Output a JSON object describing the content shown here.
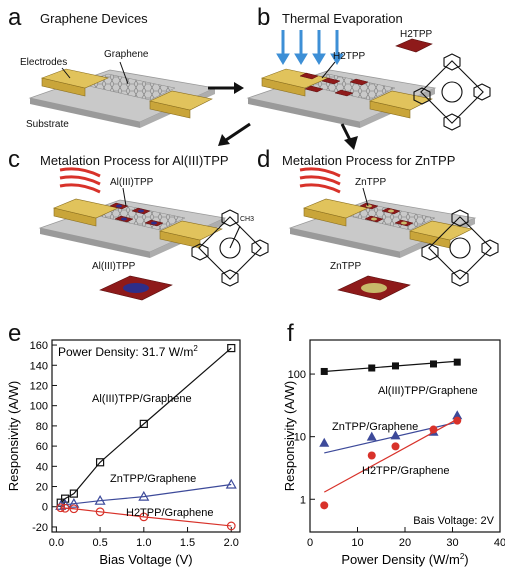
{
  "panels": {
    "a": {
      "letter": "a",
      "title": "Graphene Devices",
      "labels": {
        "graphene": "Graphene",
        "electrodes": "Electrodes",
        "substrate": "Substrate"
      }
    },
    "b": {
      "letter": "b",
      "title": "Thermal Evaporation",
      "labels": {
        "h2tpp_top": "H2TPP",
        "h2tpp_mol": "H2TPP"
      }
    },
    "c": {
      "letter": "c",
      "title": "Metalation Process for Al(III)TPP",
      "labels": {
        "altpp_top": "Al(III)TPP",
        "altpp_mol": "Al(III)TPP",
        "ch3": "CH3"
      }
    },
    "d": {
      "letter": "d",
      "title": "Metalation Process for ZnTPP",
      "labels": {
        "zntpp_top": "ZnTPP",
        "zntpp_mol": "ZnTPP"
      }
    },
    "e": {
      "letter": "e"
    },
    "f": {
      "letter": "f"
    }
  },
  "colors": {
    "electrode": "#c9a53a",
    "substrate": "#bdbdbd",
    "porphyrin_film": "#8e1a1a",
    "arrow_blue": "#3d8fd6",
    "heat_red": "#d8322a",
    "al": "#2e2e8a",
    "zn": "#c7b96a"
  },
  "chart_data": [
    {
      "type": "line",
      "annotation": "Power Density: 31.7 W/m",
      "annotation_sup": "2",
      "xlabel": "Bias Voltage (V)",
      "ylabel": "Responsivity (A/W)",
      "xlim": [
        -0.05,
        2.1
      ],
      "ylim": [
        -25,
        165
      ],
      "xticks": [
        0.0,
        0.5,
        1.0,
        1.5,
        2.0
      ],
      "xtick_labels": [
        "0.0",
        "0.5",
        "1.0",
        "1.5",
        "2.0"
      ],
      "yticks": [
        -20,
        0,
        20,
        40,
        60,
        80,
        100,
        120,
        140,
        160
      ],
      "series": [
        {
          "name": "Al(III)TPP/Graphene",
          "color": "#111111",
          "marker": "square",
          "x": [
            0.05,
            0.1,
            0.2,
            0.5,
            1.0,
            2.0
          ],
          "y": [
            4,
            8,
            13,
            44,
            82,
            157
          ]
        },
        {
          "name": "ZnTPP/Graphene",
          "color": "#3d4a9a",
          "marker": "triangle",
          "x": [
            0.05,
            0.1,
            0.2,
            0.5,
            1.0,
            2.0
          ],
          "y": [
            1,
            2,
            3,
            6,
            10,
            22
          ]
        },
        {
          "name": "H2TPP/Graphene",
          "color": "#d8322a",
          "marker": "circle",
          "x": [
            0.05,
            0.1,
            0.2,
            0.5,
            1.0,
            2.0
          ],
          "y": [
            -1,
            -1.5,
            -2,
            -5,
            -10,
            -19
          ]
        }
      ]
    },
    {
      "type": "scatter",
      "annotation": "Bais Voltage: 2V",
      "xlabel": "Power Density (W/m",
      "xlabel_sup": "2",
      "xlabel_end": ")",
      "ylabel": "Responsivity (A/W)",
      "xlim": [
        0,
        40
      ],
      "ylim_log": [
        0.3,
        350
      ],
      "yscale": "log",
      "xticks": [
        0,
        10,
        20,
        30,
        40
      ],
      "xtick_labels": [
        "0",
        "10",
        "20",
        "30",
        "40"
      ],
      "yticks": [
        1,
        10,
        100
      ],
      "ytick_labels": [
        "1",
        "10",
        "100"
      ],
      "series": [
        {
          "name": "Al(III)TPP/Graphene",
          "color": "#111111",
          "marker": "square",
          "x": [
            3,
            13,
            18,
            26,
            31
          ],
          "y": [
            110,
            125,
            135,
            145,
            155
          ],
          "fit": [
            [
              3,
              110
            ],
            [
              31,
              160
            ]
          ]
        },
        {
          "name": "ZnTPP/Graphene",
          "color": "#3d4a9a",
          "marker": "triangle",
          "x": [
            3,
            13,
            18,
            26,
            31
          ],
          "y": [
            8,
            10,
            10.5,
            12,
            22
          ],
          "fit": [
            [
              3,
              5.5
            ],
            [
              31,
              17
            ]
          ]
        },
        {
          "name": "H2TPP/Graphene",
          "color": "#d8322a",
          "marker": "circle",
          "x": [
            3,
            13,
            18,
            26,
            31
          ],
          "y": [
            0.8,
            5,
            7,
            13,
            18
          ],
          "fit": [
            [
              3,
              1.3
            ],
            [
              31,
              19
            ]
          ]
        }
      ]
    }
  ]
}
